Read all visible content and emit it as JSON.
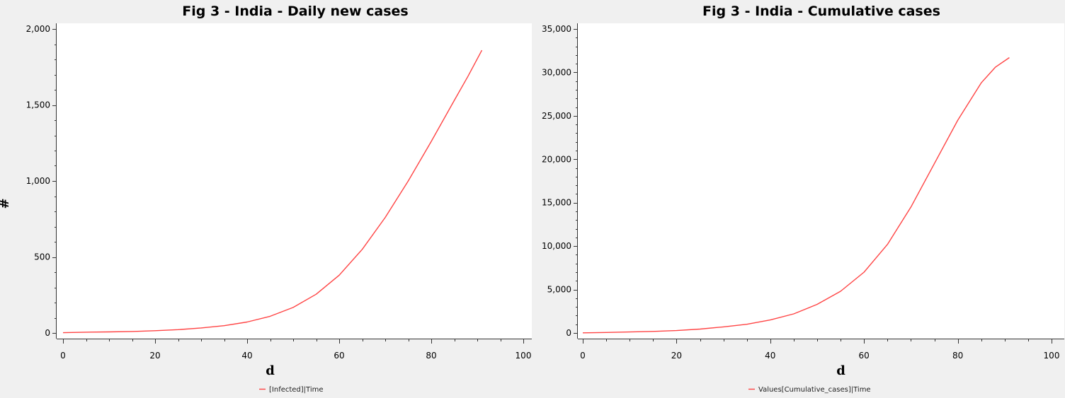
{
  "chart_data": [
    {
      "type": "line",
      "title": "Fig 3 - India - Daily new cases",
      "xlabel": "d",
      "ylabel": "#",
      "xlim": [
        0,
        100
      ],
      "ylim": [
        0,
        2000
      ],
      "xticks": [
        0,
        20,
        40,
        60,
        80,
        100
      ],
      "yticks": [
        0,
        500,
        1000,
        1500,
        2000
      ],
      "xtick_labels": [
        "0",
        "20",
        "40",
        "60",
        "80",
        "100"
      ],
      "ytick_labels": [
        "0",
        "500",
        "1,000",
        "1,500",
        "2,000"
      ],
      "grid": false,
      "legend_position": "bottom-center",
      "series": [
        {
          "name": "[Infected]|Time",
          "color": "#ff4444",
          "x": [
            0,
            5,
            10,
            15,
            20,
            25,
            30,
            35,
            40,
            45,
            50,
            55,
            60,
            65,
            70,
            75,
            80,
            85,
            88,
            91
          ],
          "y": [
            2,
            5,
            7,
            10,
            15,
            22,
            33,
            48,
            72,
            110,
            168,
            255,
            380,
            550,
            760,
            1000,
            1260,
            1530,
            1690,
            1860
          ]
        }
      ]
    },
    {
      "type": "line",
      "title": "Fig 3 - India - Cumulative cases",
      "xlabel": "d",
      "ylabel": "",
      "xlim": [
        0,
        100
      ],
      "ylim": [
        0,
        35000
      ],
      "xticks": [
        0,
        20,
        40,
        60,
        80,
        100
      ],
      "yticks": [
        0,
        5000,
        10000,
        15000,
        20000,
        25000,
        30000,
        35000
      ],
      "xtick_labels": [
        "0",
        "20",
        "40",
        "60",
        "80",
        "100"
      ],
      "ytick_labels": [
        "0",
        "5,000",
        "10,000",
        "15,000",
        "20,000",
        "25,000",
        "30,000",
        "35,000"
      ],
      "grid": false,
      "legend_position": "bottom-center",
      "series": [
        {
          "name": "Values[Cumulative_cases]|Time",
          "color": "#ff4444",
          "x": [
            0,
            5,
            10,
            15,
            20,
            25,
            30,
            35,
            40,
            45,
            50,
            55,
            60,
            65,
            70,
            75,
            80,
            85,
            88,
            91
          ],
          "y": [
            20,
            60,
            110,
            180,
            280,
            450,
            700,
            1000,
            1500,
            2200,
            3300,
            4800,
            7000,
            10200,
            14500,
            19500,
            24500,
            28800,
            30600,
            31700
          ]
        }
      ]
    }
  ]
}
